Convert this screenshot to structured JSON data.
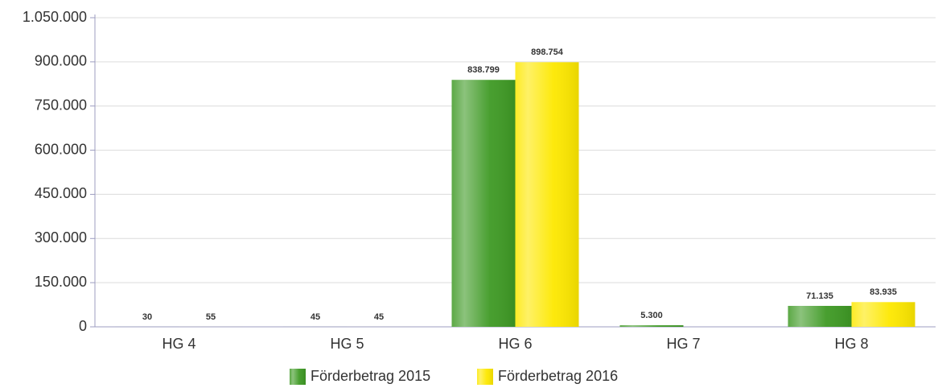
{
  "chart_data": {
    "type": "bar",
    "categories": [
      "HG 4",
      "HG 5",
      "HG 6",
      "HG 7",
      "HG 8"
    ],
    "series": [
      {
        "name": "Förderbetrag 2015",
        "color": "#3f9a25",
        "values": [
          30,
          45,
          838799,
          5300,
          71135
        ],
        "value_labels": [
          "30",
          "45",
          "838.799",
          "5.300",
          "71.135"
        ]
      },
      {
        "name": "Förderbetrag 2016",
        "color": "#fde800",
        "values": [
          55,
          45,
          898754,
          null,
          83935
        ],
        "value_labels": [
          "55",
          "45",
          "898.754",
          null,
          "83.935"
        ]
      }
    ],
    "ylim": [
      0,
      1050000
    ],
    "yticks": [
      0,
      {
        "value": 150000,
        "label": "150.000"
      },
      {
        "value": 300000,
        "label": "300.000"
      },
      {
        "value": 450000,
        "label": "450.000"
      },
      {
        "value": 600000,
        "label": "600.000"
      },
      {
        "value": 750000,
        "label": "750.000"
      },
      {
        "value": 900000,
        "label": "900.000"
      },
      {
        "value": 1050000,
        "label": "1.050.000"
      }
    ],
    "grid": true,
    "legend": "bottom"
  }
}
